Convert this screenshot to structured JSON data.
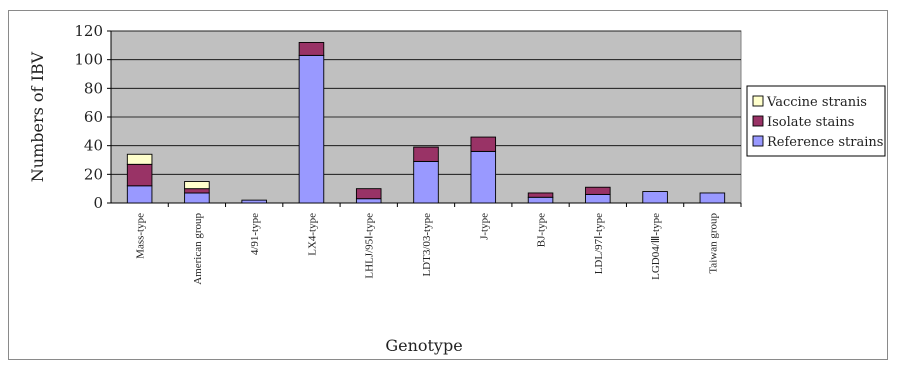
{
  "chart_data": {
    "type": "bar",
    "stacked": true,
    "xlabel": "Genotype",
    "ylabel": "Numbers of IBV",
    "ylim": [
      0,
      120
    ],
    "yticks": [
      0,
      20,
      40,
      60,
      80,
      100,
      120
    ],
    "grid": true,
    "legend_position": "right",
    "categories": [
      "Mass-type",
      "American group",
      "4/91-type",
      "LX4-type",
      "LHLJ/95Ⅰ-type",
      "LDT3/03-type",
      "J-type",
      "BJ-type",
      "LDL/97Ⅰ-type",
      "LGD04/Ⅲ-type",
      "Taiwan group"
    ],
    "series": [
      {
        "name": "Reference strains",
        "color": "#9999ff",
        "values": [
          12,
          7,
          2,
          103,
          3,
          29,
          36,
          4,
          6,
          8,
          7
        ]
      },
      {
        "name": "Isolate stains",
        "color": "#993366",
        "values": [
          15,
          3,
          0,
          9,
          7,
          10,
          10,
          3,
          5,
          0,
          0
        ]
      },
      {
        "name": "Vaccine stranis",
        "color": "#ffffcc",
        "values": [
          7,
          5,
          0,
          0,
          0,
          0,
          0,
          0,
          0,
          0,
          0
        ]
      }
    ],
    "legend_order": [
      "Vaccine stranis",
      "Isolate stains",
      "Reference strains"
    ]
  }
}
